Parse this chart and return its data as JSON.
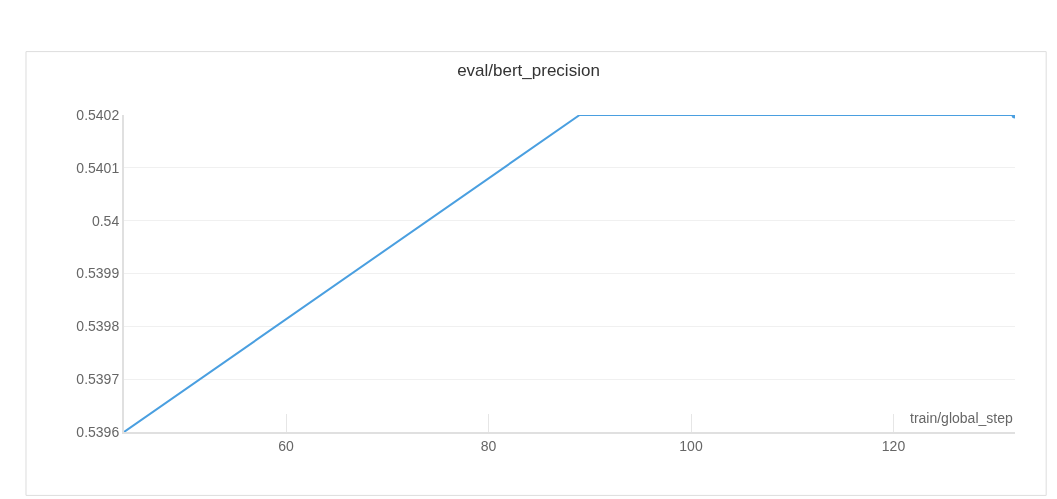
{
  "chart_data": {
    "type": "line",
    "title": "eval/bert_precision",
    "xlabel": "train/global_step",
    "xlim": [
      44,
      132
    ],
    "xticks": [
      60,
      80,
      100,
      120
    ],
    "ylim": [
      0.5396,
      0.5402
    ],
    "yticks": [
      0.5396,
      0.5397,
      0.5398,
      0.5399,
      0.54,
      0.5401,
      0.5402
    ],
    "grid": "y",
    "marker": "none",
    "line_style": "solid",
    "series": [
      {
        "color": "#4a9fe0",
        "x": [
          44,
          89,
          132
        ],
        "values": [
          0.5396,
          0.5402,
          0.5402
        ]
      },
      {
        "type": "scatter",
        "marker": "circle",
        "color": "#4a9fe0",
        "x": [
          132
        ],
        "values": [
          0.5402
        ]
      }
    ]
  }
}
